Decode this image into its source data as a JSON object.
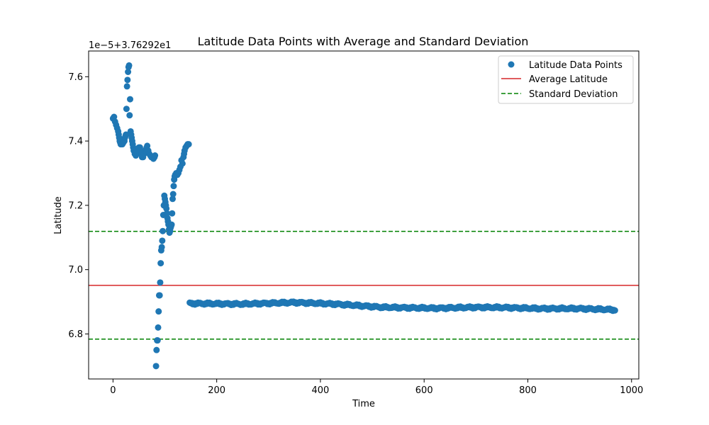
{
  "chart_data": {
    "type": "scatter",
    "title": "Latitude Data Points with Average and Standard Deviation",
    "xlabel": "Time",
    "ylabel": "Latitude",
    "offset_text": "1e−5+3.76292e1",
    "xlim": [
      -47,
      1014
    ],
    "ylim": [
      6.66,
      7.68
    ],
    "x_ticks": [
      0,
      200,
      400,
      600,
      800,
      1000
    ],
    "y_ticks": [
      6.8,
      7.0,
      7.2,
      7.4,
      7.6
    ],
    "x_tick_labels": [
      "0",
      "200",
      "400",
      "600",
      "800",
      "1000"
    ],
    "y_tick_labels": [
      "6.8",
      "7.0",
      "7.2",
      "7.4",
      "7.6"
    ],
    "grid": false,
    "legend_position": "top-right",
    "series": [
      {
        "name": "Latitude Data Points",
        "kind": "scatter",
        "color": "#1f77b4",
        "points": [
          [
            0,
            7.47
          ],
          [
            2,
            7.475
          ],
          [
            4,
            7.46
          ],
          [
            6,
            7.45
          ],
          [
            8,
            7.44
          ],
          [
            10,
            7.43
          ],
          [
            11,
            7.42
          ],
          [
            12,
            7.41
          ],
          [
            13,
            7.4
          ],
          [
            14,
            7.395
          ],
          [
            15,
            7.39
          ],
          [
            16,
            7.39
          ],
          [
            18,
            7.39
          ],
          [
            20,
            7.395
          ],
          [
            22,
            7.4
          ],
          [
            23,
            7.41
          ],
          [
            24,
            7.415
          ],
          [
            25,
            7.42
          ],
          [
            26,
            7.5
          ],
          [
            27,
            7.57
          ],
          [
            28,
            7.59
          ],
          [
            29,
            7.615
          ],
          [
            30,
            7.63
          ],
          [
            31,
            7.635
          ],
          [
            32,
            7.48
          ],
          [
            33,
            7.53
          ],
          [
            34,
            7.43
          ],
          [
            35,
            7.42
          ],
          [
            36,
            7.41
          ],
          [
            37,
            7.4
          ],
          [
            38,
            7.39
          ],
          [
            39,
            7.38
          ],
          [
            40,
            7.37
          ],
          [
            42,
            7.36
          ],
          [
            44,
            7.355
          ],
          [
            46,
            7.36
          ],
          [
            48,
            7.37
          ],
          [
            50,
            7.38
          ],
          [
            52,
            7.38
          ],
          [
            54,
            7.37
          ],
          [
            55,
            7.36
          ],
          [
            56,
            7.35
          ],
          [
            58,
            7.35
          ],
          [
            60,
            7.36
          ],
          [
            62,
            7.37
          ],
          [
            64,
            7.375
          ],
          [
            65,
            7.38
          ],
          [
            66,
            7.385
          ],
          [
            68,
            7.37
          ],
          [
            70,
            7.36
          ],
          [
            72,
            7.355
          ],
          [
            74,
            7.35
          ],
          [
            76,
            7.35
          ],
          [
            78,
            7.345
          ],
          [
            80,
            7.35
          ],
          [
            81,
            7.355
          ],
          [
            83,
            6.7
          ],
          [
            84,
            6.75
          ],
          [
            85,
            6.78
          ],
          [
            86,
            6.78
          ],
          [
            87,
            6.82
          ],
          [
            88,
            6.87
          ],
          [
            89,
            6.92
          ],
          [
            90,
            6.92
          ],
          [
            91,
            6.96
          ],
          [
            92,
            7.02
          ],
          [
            93,
            7.06
          ],
          [
            94,
            7.07
          ],
          [
            95,
            7.09
          ],
          [
            96,
            7.12
          ],
          [
            97,
            7.17
          ],
          [
            98,
            7.2
          ],
          [
            99,
            7.23
          ],
          [
            100,
            7.22
          ],
          [
            101,
            7.21
          ],
          [
            102,
            7.2
          ],
          [
            103,
            7.19
          ],
          [
            104,
            7.175
          ],
          [
            105,
            7.16
          ],
          [
            106,
            7.15
          ],
          [
            107,
            7.14
          ],
          [
            108,
            7.125
          ],
          [
            109,
            7.115
          ],
          [
            110,
            7.12
          ],
          [
            111,
            7.13
          ],
          [
            112,
            7.135
          ],
          [
            113,
            7.14
          ],
          [
            114,
            7.175
          ],
          [
            115,
            7.22
          ],
          [
            116,
            7.235
          ],
          [
            117,
            7.26
          ],
          [
            118,
            7.28
          ],
          [
            119,
            7.29
          ],
          [
            120,
            7.295
          ],
          [
            122,
            7.3
          ],
          [
            124,
            7.295
          ],
          [
            126,
            7.3
          ],
          [
            128,
            7.31
          ],
          [
            130,
            7.32
          ],
          [
            132,
            7.34
          ],
          [
            134,
            7.33
          ],
          [
            136,
            7.35
          ],
          [
            137,
            7.36
          ],
          [
            138,
            7.37
          ],
          [
            140,
            7.38
          ],
          [
            142,
            7.385
          ],
          [
            144,
            7.39
          ],
          [
            146,
            7.39
          ]
        ],
        "tail": {
          "x_start": 148,
          "x_end": 968,
          "step": 2,
          "knots_x": [
            148,
            250,
            350,
            430,
            520,
            620,
            700,
            760,
            820,
            900,
            968
          ],
          "knots_y": [
            6.895,
            6.893,
            6.898,
            6.893,
            6.883,
            6.88,
            6.883,
            6.882,
            6.879,
            6.879,
            6.875
          ]
        }
      },
      {
        "name": "Average Latitude",
        "kind": "hline",
        "y": 6.951,
        "color": "#d62728",
        "dash": "solid"
      },
      {
        "name": "Standard Deviation",
        "kind": "hline",
        "y": [
          7.119,
          6.784
        ],
        "color": "#008000",
        "dash": "dashed"
      }
    ]
  }
}
